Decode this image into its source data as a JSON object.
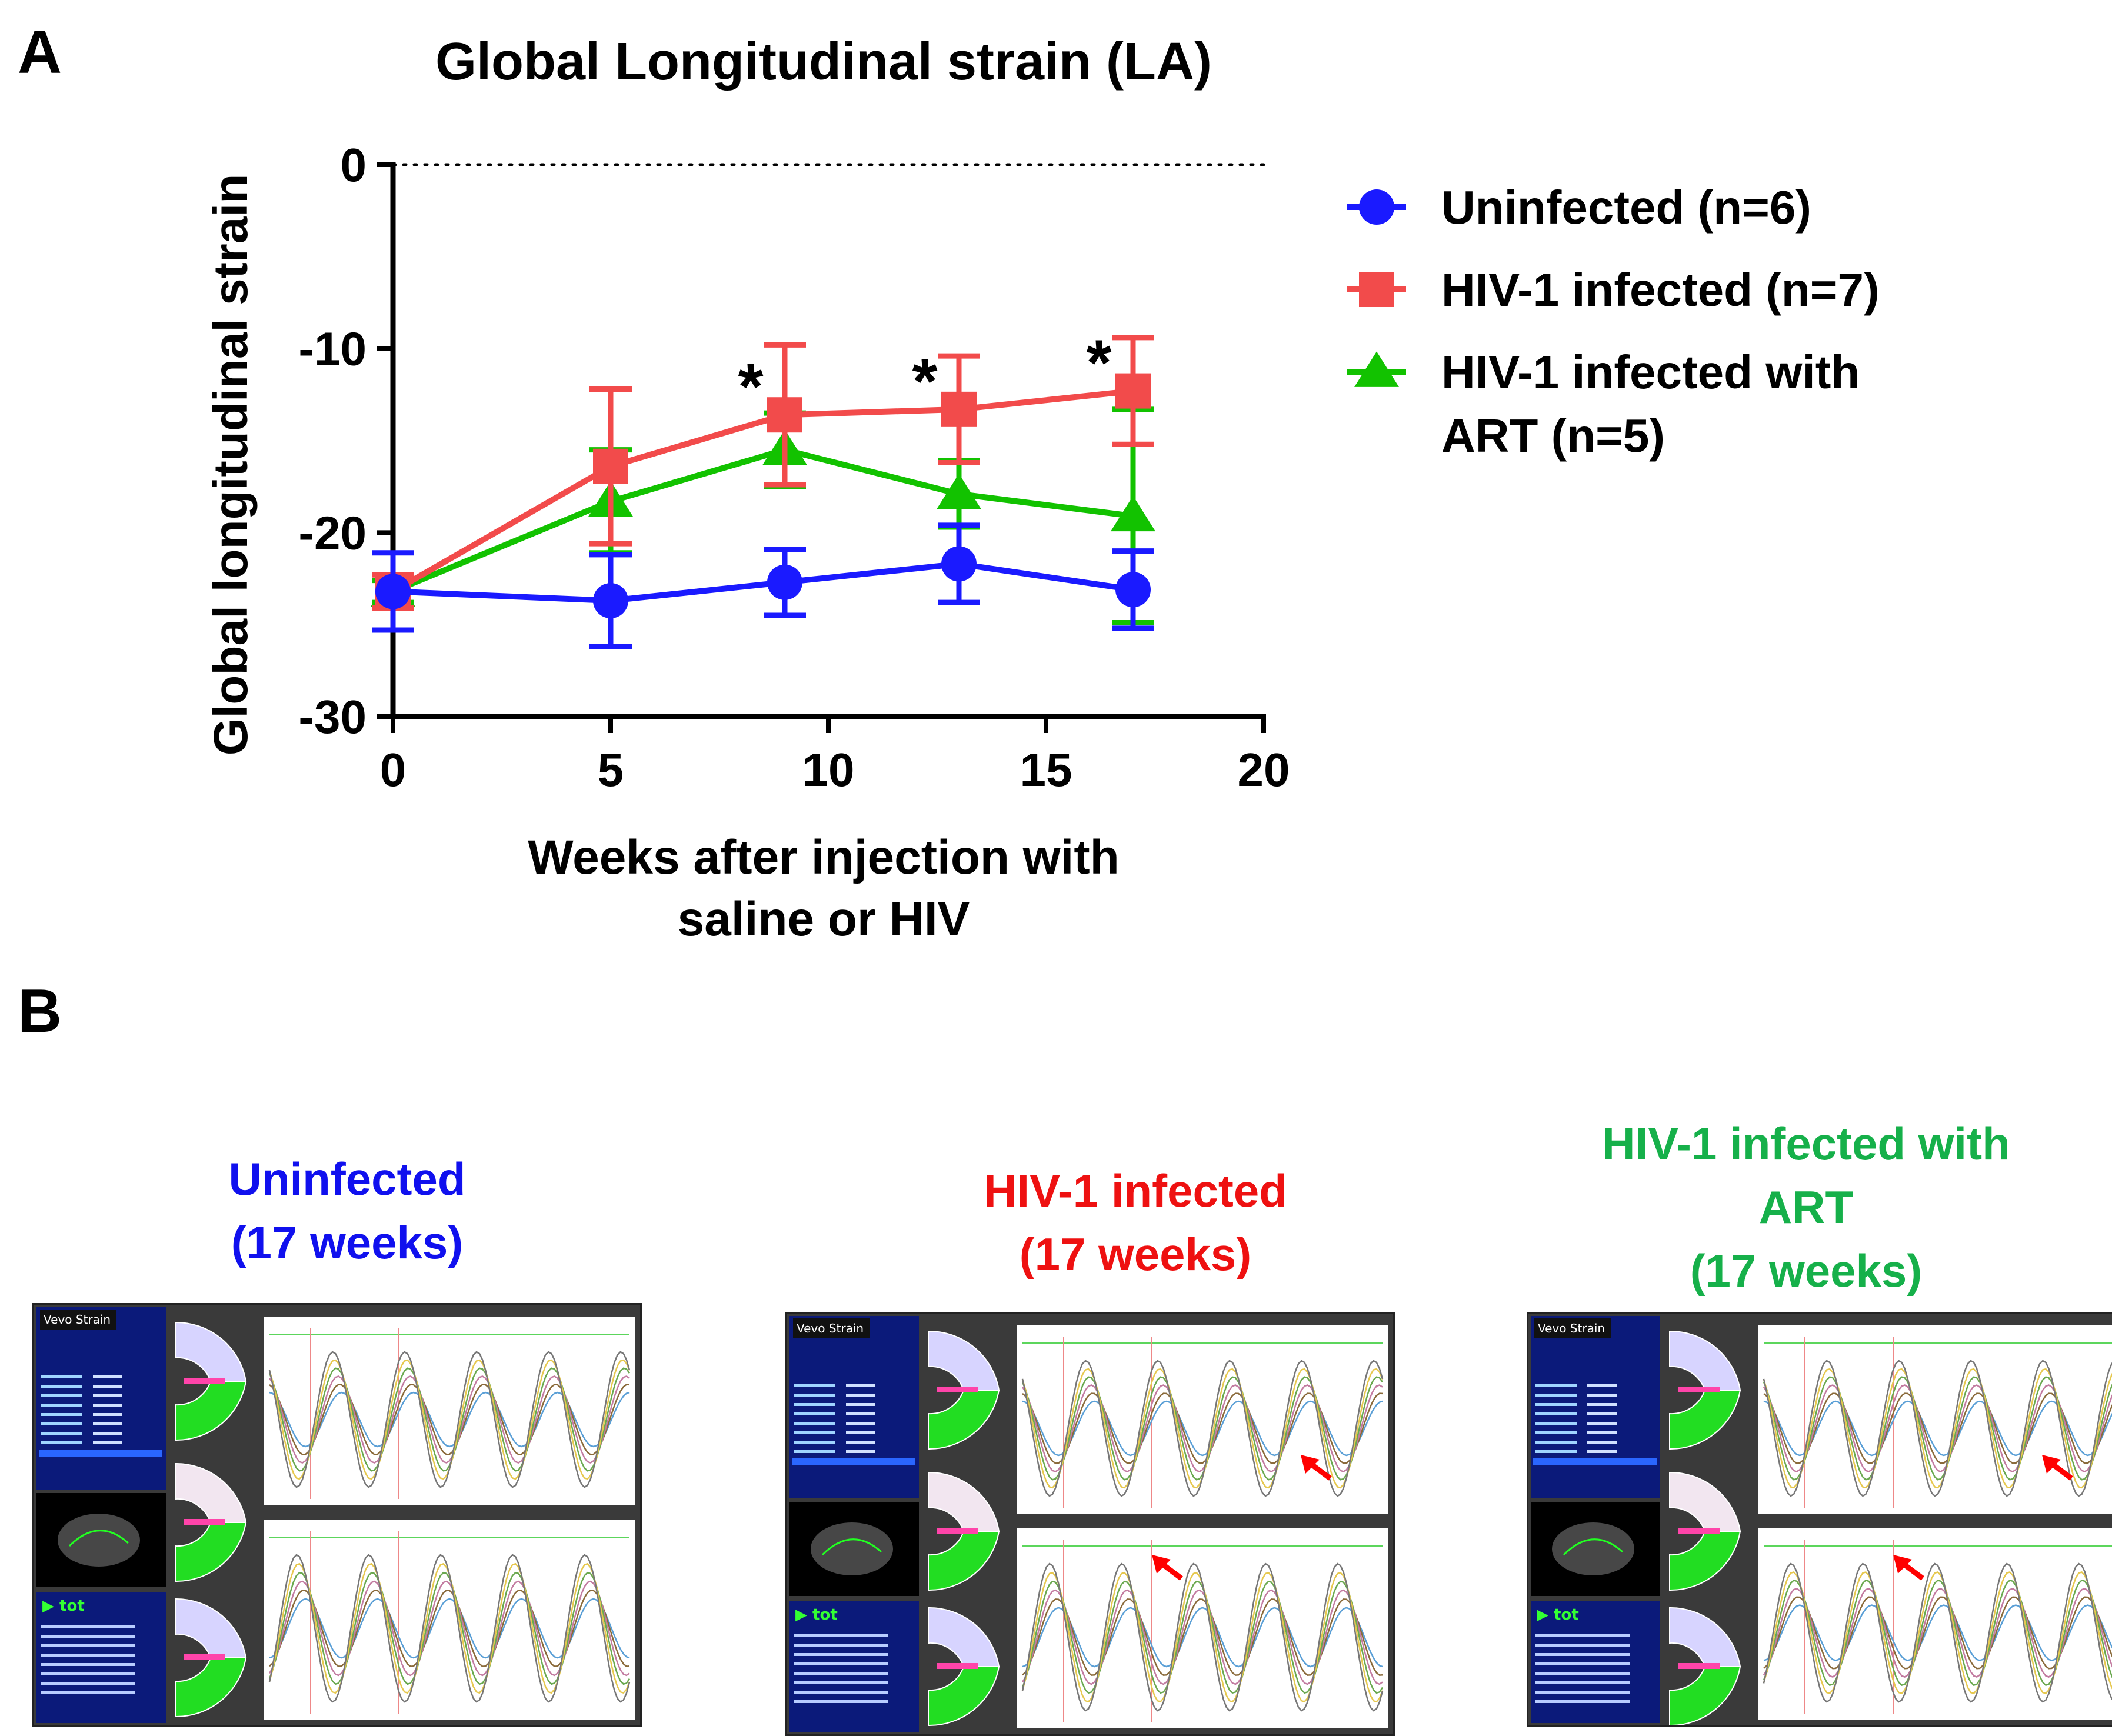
{
  "panel_a_letter": "A",
  "panel_b_letter": "B",
  "colors": {
    "blue": "#1a1aff",
    "red": "#f24b4b",
    "green": "#12c200",
    "caption_blue": "#1010ee",
    "caption_red": "#ee1111",
    "caption_green": "#16b04a"
  },
  "chart_data": {
    "type": "line",
    "title": "Global Longitudinal strain (LA)",
    "xlabel_lines": [
      "Weeks after injection with",
      "saline or HIV"
    ],
    "ylabel": "Global longitudinal strain",
    "xlim": [
      0,
      20
    ],
    "ylim": [
      -30,
      0
    ],
    "x_ticks": [
      0,
      5,
      10,
      15,
      20
    ],
    "y_ticks": [
      0,
      -10,
      -20,
      -30
    ],
    "reference_line_y": 0,
    "series": [
      {
        "name": "Uninfected (n=6)",
        "legend_lines": [
          "Uninfected (n=6)"
        ],
        "color": "#1a1aff",
        "marker": "circle",
        "x": [
          0,
          5,
          9,
          13,
          17
        ],
        "y": [
          -23.2,
          -23.7,
          -22.7,
          -21.7,
          -23.1
        ],
        "err": [
          2.1,
          2.5,
          1.8,
          2.1,
          2.1
        ]
      },
      {
        "name": "HIV-1 infected (n=7)",
        "legend_lines": [
          "HIV-1 infected (n=7)"
        ],
        "color": "#f24b4b",
        "marker": "square",
        "x": [
          0,
          5,
          9,
          13,
          17
        ],
        "y": [
          -23.2,
          -16.4,
          -13.6,
          -13.3,
          -12.3
        ],
        "err": [
          0.9,
          4.2,
          3.8,
          2.9,
          2.9
        ]
      },
      {
        "name": "HIV-1 infected with ART (n=5)",
        "legend_lines": [
          "HIV-1 infected with",
          "ART (n=5)"
        ],
        "color": "#12c200",
        "marker": "triangle",
        "x": [
          0,
          5,
          9,
          13,
          17
        ],
        "y": [
          -23.2,
          -18.3,
          -15.5,
          -17.9,
          -19.1
        ],
        "err": [
          0.6,
          2.8,
          2.0,
          1.8,
          5.8
        ]
      }
    ],
    "annotations": [
      {
        "text": "*",
        "x": 9,
        "y": -13.6
      },
      {
        "text": "*",
        "x": 13,
        "y": -13.3
      },
      {
        "text": "*",
        "x": 17,
        "y": -12.3
      }
    ]
  },
  "panel_b": {
    "groups": [
      {
        "title_lines": [
          "Uninfected",
          "(17 weeks)"
        ],
        "color": "#1010ee"
      },
      {
        "title_lines": [
          "HIV-1 infected",
          "(17 weeks)"
        ],
        "color": "#ee1111"
      },
      {
        "title_lines": [
          "HIV-1 infected with",
          "ART",
          "(17 weeks)"
        ],
        "color": "#16b04a"
      }
    ],
    "software_logo": "Vevo Strain",
    "tot_label": "tot"
  }
}
